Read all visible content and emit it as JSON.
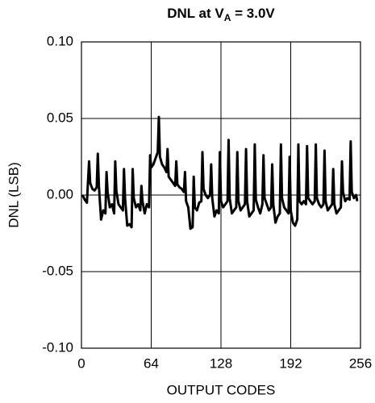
{
  "chart_data": {
    "type": "line",
    "title": [
      "DNL at V",
      "A",
      " = 3.0V"
    ],
    "xlabel": "OUTPUT CODES",
    "ylabel": "DNL (LSB)",
    "color": "#000000",
    "grid": true,
    "xlim": [
      0,
      256
    ],
    "xticks": [
      0,
      64,
      128,
      192,
      256
    ],
    "ylim": [
      -0.1,
      0.1
    ],
    "yticks": [
      {
        "value": 0.1,
        "label": "0.10"
      },
      0.05,
      {
        "value": 0,
        "label": "0.00"
      },
      -0.05,
      {
        "value": -0.1,
        "label": "-0.10"
      }
    ],
    "x": [
      1,
      3,
      5,
      7,
      8,
      10,
      12,
      14,
      15,
      16,
      18,
      20,
      22,
      23,
      24,
      26,
      28,
      30,
      31,
      32,
      34,
      36,
      38,
      39,
      40,
      42,
      44,
      46,
      47,
      48,
      50,
      52,
      54,
      55,
      56,
      58,
      60,
      62,
      63,
      64,
      66,
      68,
      70,
      71,
      72,
      74,
      76,
      78,
      79,
      80,
      82,
      84,
      86,
      87,
      88,
      90,
      92,
      94,
      95,
      96,
      98,
      100,
      102,
      103,
      104,
      106,
      108,
      110,
      111,
      112,
      114,
      116,
      118,
      119,
      120,
      122,
      124,
      126,
      127,
      128,
      130,
      132,
      134,
      135,
      136,
      138,
      140,
      142,
      143,
      144,
      146,
      148,
      150,
      151,
      152,
      154,
      156,
      158,
      159,
      160,
      162,
      164,
      166,
      167,
      168,
      170,
      172,
      174,
      175,
      176,
      178,
      180,
      182,
      183,
      184,
      186,
      188,
      190,
      191,
      192,
      194,
      196,
      198,
      199,
      200,
      202,
      204,
      206,
      207,
      208,
      210,
      212,
      214,
      215,
      216,
      218,
      220,
      222,
      223,
      224,
      226,
      228,
      230,
      231,
      232,
      234,
      236,
      238,
      239,
      240,
      242,
      244,
      246,
      247,
      248,
      250,
      252,
      253
    ],
    "values": [
      0,
      -0.003,
      -0.005,
      0.022,
      0.008,
      0.004,
      0.003,
      0.005,
      0.027,
      0.006,
      -0.016,
      -0.01,
      -0.012,
      0.015,
      0.002,
      -0.008,
      -0.006,
      -0.012,
      0.022,
      0.003,
      -0.006,
      -0.008,
      -0.01,
      0.017,
      -0.002,
      -0.02,
      -0.019,
      -0.021,
      0.017,
      -0.002,
      -0.008,
      -0.006,
      -0.01,
      0.006,
      -0.004,
      -0.012,
      -0.006,
      -0.008,
      0.026,
      0.018,
      0.02,
      0.024,
      0.028,
      0.051,
      0.025,
      0.02,
      0.018,
      0.015,
      0.03,
      0.012,
      0.01,
      0.008,
      0.006,
      0.022,
      0.007,
      0.005,
      0.004,
      0.002,
      0.015,
      -0.004,
      -0.008,
      -0.022,
      -0.021,
      0.012,
      -0.008,
      -0.01,
      -0.005,
      -0.004,
      0.028,
      0.004,
      0,
      -0.002,
      0,
      0.02,
      -0.002,
      -0.014,
      -0.01,
      -0.012,
      0.028,
      -0.004,
      -0.008,
      -0.006,
      -0.004,
      0.036,
      -0.002,
      -0.012,
      -0.01,
      -0.008,
      0.028,
      -0.004,
      -0.01,
      -0.008,
      -0.006,
      0.03,
      -0.004,
      -0.014,
      -0.012,
      -0.01,
      0.033,
      -0.003,
      -0.008,
      -0.012,
      -0.006,
      0.026,
      -0.002,
      -0.006,
      -0.01,
      -0.008,
      0.02,
      -0.006,
      -0.018,
      -0.014,
      -0.012,
      0.033,
      -0.002,
      -0.008,
      -0.01,
      -0.012,
      0.025,
      -0.01,
      -0.018,
      -0.02,
      -0.016,
      0.033,
      -0.004,
      -0.006,
      -0.004,
      -0.006,
      0.032,
      -0.002,
      -0.004,
      -0.006,
      -0.004,
      0.033,
      -0.002,
      -0.006,
      -0.008,
      -0.006,
      0.029,
      -0.004,
      -0.01,
      -0.008,
      -0.006,
      0.017,
      -0.006,
      -0.012,
      -0.01,
      -0.008,
      0.022,
      0.002,
      -0.004,
      -0.002,
      -0.003,
      0.035,
      0.002,
      -0.002,
      0,
      -0.004
    ]
  }
}
